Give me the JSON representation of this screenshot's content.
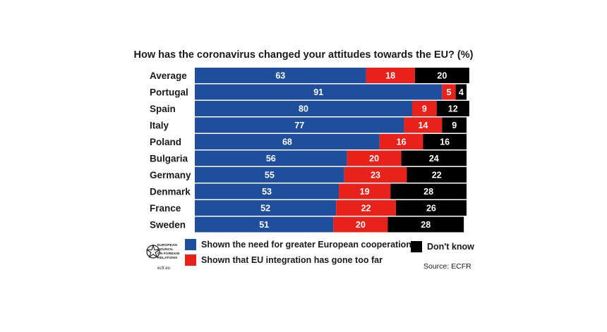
{
  "chart_data": {
    "type": "bar",
    "stacked": true,
    "orientation": "horizontal",
    "title": "How has the coronavirus changed your attitudes towards the EU? (%)",
    "categories": [
      "Average",
      "Portugal",
      "Spain",
      "Italy",
      "Poland",
      "Bulgaria",
      "Germany",
      "Denmark",
      "France",
      "Sweden"
    ],
    "series": [
      {
        "name": "Shown the need for greater European cooperation",
        "color": "#1f4e9c",
        "values": [
          63,
          91,
          80,
          77,
          68,
          56,
          55,
          53,
          52,
          51
        ]
      },
      {
        "name": "Shown that EU integration has gone too far",
        "color": "#e8221b",
        "values": [
          18,
          5,
          9,
          14,
          16,
          20,
          23,
          19,
          22,
          20
        ]
      },
      {
        "name": "Don't know",
        "color": "#000000",
        "values": [
          20,
          4,
          12,
          9,
          16,
          24,
          22,
          28,
          26,
          28
        ]
      }
    ],
    "xlim": [
      0,
      100
    ],
    "grid": false,
    "legend_placement": "bottom"
  },
  "legend": {
    "cooperation": "Shown the need for greater European cooperation",
    "too_far": "Shown that EU integration has gone too far",
    "dont_know": "Don't know"
  },
  "source": "Source: ECFR",
  "logo": {
    "lines": [
      "EUROPEAN",
      "COUNCIL",
      "ON FOREIGN",
      "RELATIONS"
    ],
    "url": "ecfr.eu"
  }
}
